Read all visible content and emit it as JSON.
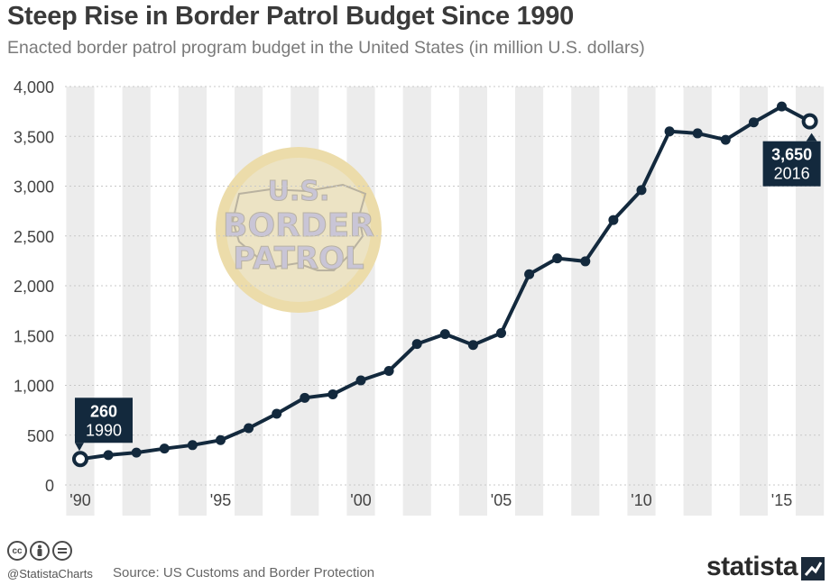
{
  "header": {
    "title": "Steep Rise in Border Patrol Budget Since 1990",
    "subtitle": "Enacted border patrol program budget in the United States (in million U.S. dollars)"
  },
  "logo": {
    "lines": [
      "U.S.",
      "BORDER",
      "PATROL"
    ]
  },
  "footer": {
    "handle": "@StatistaCharts",
    "source": "Source: US Customs and Border Protection",
    "brand": "statista",
    "icons": [
      "creative-commons-icon",
      "attribution-icon",
      "no-derivatives-icon"
    ]
  },
  "colors": {
    "line": "#13293d",
    "band": "#ececec",
    "grid": "#c8c8c8",
    "logo_fill": "#cfcfdc",
    "logo_ring": "#ecdcaa"
  },
  "chart_data": {
    "type": "line",
    "title": "Steep Rise in Border Patrol Budget Since 1990",
    "subtitle": "Enacted border patrol program budget in the United States (in million U.S. dollars)",
    "x": [
      1990,
      1991,
      1992,
      1993,
      1994,
      1995,
      1996,
      1997,
      1998,
      1999,
      2000,
      2001,
      2002,
      2003,
      2004,
      2005,
      2006,
      2007,
      2008,
      2009,
      2010,
      2011,
      2012,
      2013,
      2014,
      2015,
      2016
    ],
    "series": [
      {
        "values": [
          260,
          300,
          325,
          365,
          400,
          450,
          570,
          715,
          875,
          910,
          1050,
          1145,
          1415,
          1515,
          1405,
          1525,
          2115,
          2275,
          2245,
          2660,
          2960,
          3550,
          3530,
          3465,
          3640,
          3800,
          3650
        ]
      }
    ],
    "ylim": [
      0,
      4000
    ],
    "yticks": [
      0,
      500,
      1000,
      1500,
      2000,
      2500,
      3000,
      3500,
      4000
    ],
    "ytick_labels": [
      "0",
      "500",
      "1,000",
      "1,500",
      "2,000",
      "2,500",
      "3,000",
      "3,500",
      "4,000"
    ],
    "xtick_labels": [
      {
        "x": 1990,
        "label": "'90"
      },
      {
        "x": 1995,
        "label": "'95"
      },
      {
        "x": 2000,
        "label": "'00"
      },
      {
        "x": 2005,
        "label": "'05"
      },
      {
        "x": 2010,
        "label": "'10"
      },
      {
        "x": 2015,
        "label": "'15"
      }
    ],
    "annotations": [
      {
        "x": 1990,
        "value_label": "260",
        "year_label": "1990"
      },
      {
        "x": 2016,
        "value_label": "3,650",
        "year_label": "2016"
      }
    ],
    "grid": true,
    "alternating_year_bands": true,
    "legend": "none"
  }
}
